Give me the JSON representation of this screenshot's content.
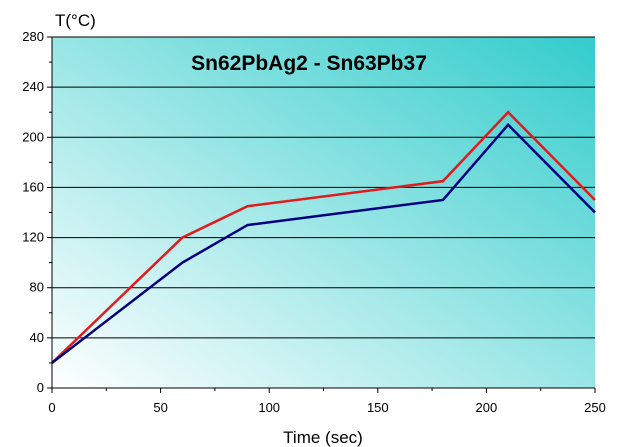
{
  "chart_data": {
    "type": "line",
    "title": "Sn62PbAg2 - Sn63Pb37",
    "xlabel": "Time (sec)",
    "ylabel": "T(°C)",
    "xlim": [
      0,
      250
    ],
    "ylim": [
      0,
      280
    ],
    "xticks": [
      0,
      50,
      100,
      150,
      200,
      250
    ],
    "yticks": [
      0,
      40,
      80,
      120,
      160,
      200,
      240,
      280
    ],
    "grid": "horizontal",
    "series": [
      {
        "color": "#e31a1c",
        "x": [
          0,
          60,
          90,
          180,
          210,
          250
        ],
        "y": [
          20,
          120,
          145,
          165,
          220,
          150
        ]
      },
      {
        "color": "#000080",
        "x": [
          0,
          60,
          90,
          180,
          210,
          250
        ],
        "y": [
          20,
          100,
          130,
          150,
          210,
          140
        ]
      }
    ],
    "background_gradient": [
      "#ffffff",
      "#33cccc"
    ]
  }
}
